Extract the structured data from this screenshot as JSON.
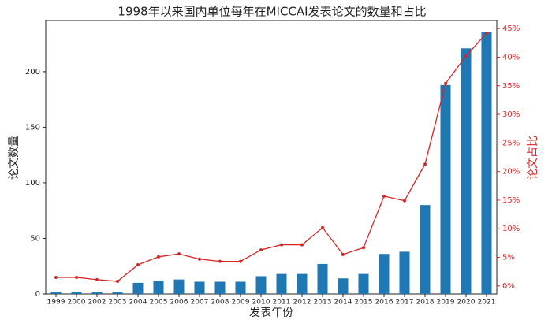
{
  "chart_data": {
    "type": "bar-line",
    "title": "1998年以来国内单位每年在MICCAI发表论文的数量和占比",
    "x_label": "发表年份",
    "y_label": "论文数量",
    "y2_label": "论文占比",
    "categories": [
      "1999",
      "2000",
      "2002",
      "2003",
      "2004",
      "2005",
      "2006",
      "2007",
      "2008",
      "2009",
      "2010",
      "2011",
      "2012",
      "2013",
      "2014",
      "2015",
      "2016",
      "2017",
      "2018",
      "2019",
      "2020",
      "2021"
    ],
    "series": [
      {
        "type": "bar",
        "color": "#1f77b4",
        "values": [
          2,
          2,
          2,
          2,
          10,
          12,
          13,
          11,
          11,
          11,
          16,
          18,
          18,
          27,
          14,
          18,
          36,
          38,
          80,
          188,
          221,
          236
        ]
      },
      {
        "type": "line",
        "axis": "y2",
        "color": "#d62728",
        "values": [
          1.5,
          1.5,
          1.1,
          0.8,
          3.7,
          5.1,
          5.6,
          4.7,
          4.3,
          4.3,
          6.3,
          7.2,
          7.2,
          10.2,
          5.5,
          6.7,
          15.7,
          14.9,
          21.3,
          35.4,
          40.2,
          44.2
        ]
      }
    ],
    "ylim": [
      0,
      246
    ],
    "yticks": [
      0,
      50,
      100,
      150,
      200
    ],
    "y2lim": [
      -1.4,
      46.4
    ],
    "y2ticks": [
      {
        "value": 0,
        "label": "0%"
      },
      {
        "value": 5,
        "label": "5%"
      },
      {
        "value": 10,
        "label": "10%"
      },
      {
        "value": 15,
        "label": "15%"
      },
      {
        "value": 20,
        "label": "20%"
      },
      {
        "value": 25,
        "label": "25%"
      },
      {
        "value": 30,
        "label": "30%"
      },
      {
        "value": 35,
        "label": "35%"
      },
      {
        "value": 40,
        "label": "40%"
      },
      {
        "value": 45,
        "label": "45%"
      }
    ]
  }
}
